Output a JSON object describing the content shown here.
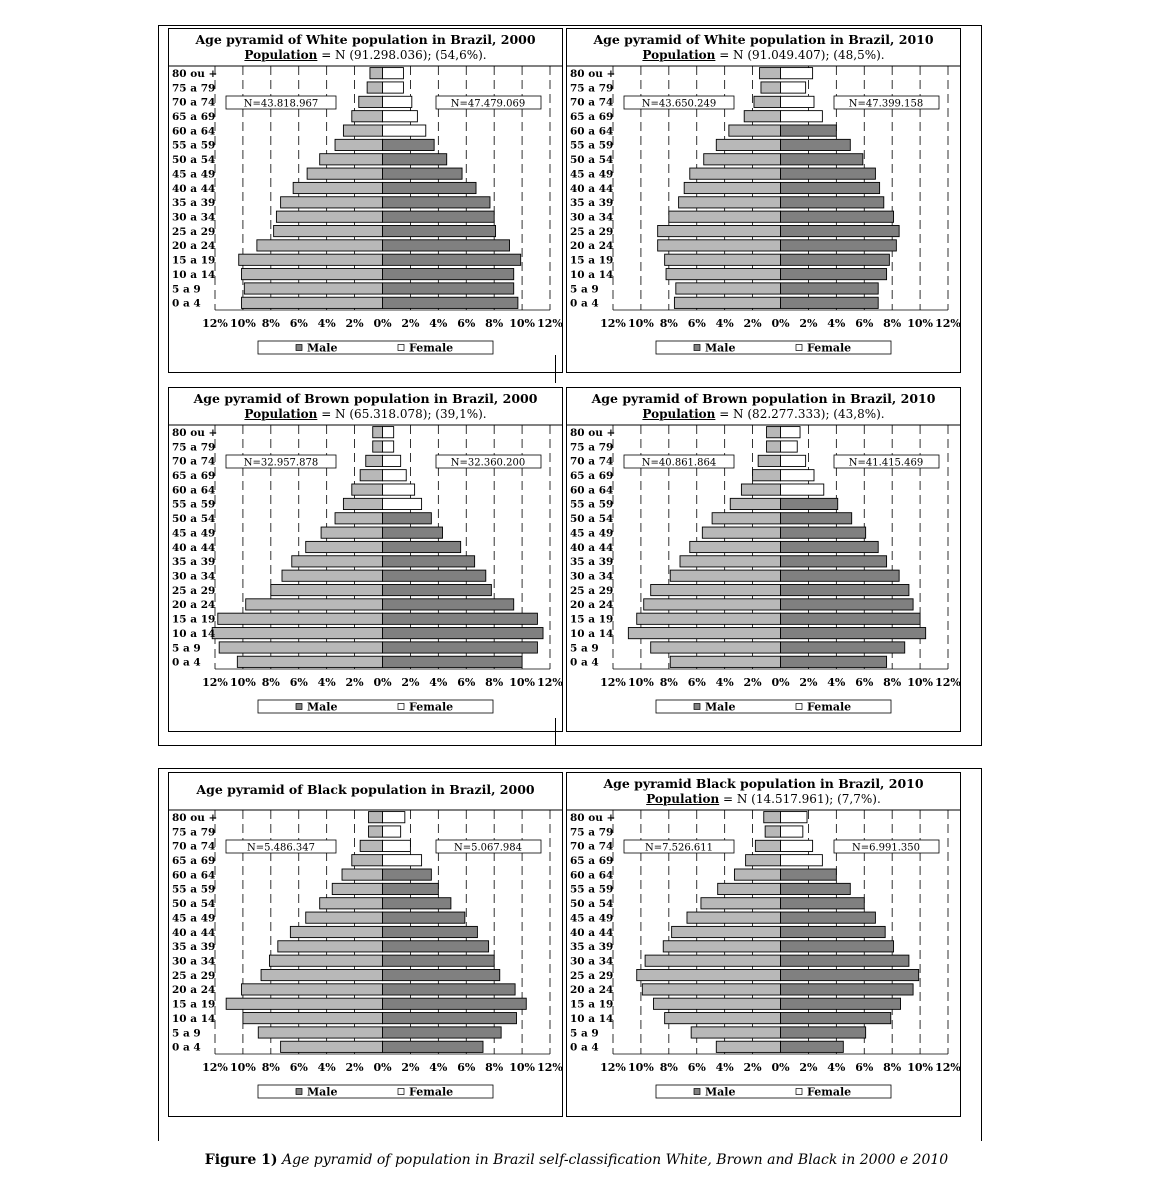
{
  "age_labels": [
    "0 a 4",
    "5 a 9",
    "10 a 14",
    "15 a 19",
    "20 a 24",
    "25 a 29",
    "30 a 34",
    "35 a 39",
    "40 a 44",
    "45 a 49",
    "50 a 54",
    "55 a 59",
    "60 a 64",
    "65 a 69",
    "70 a 74",
    "75 a 79",
    "80 ou +"
  ],
  "x_ticks": [
    "12%",
    "10%",
    "8%",
    "6%",
    "4%",
    "2%",
    "0%",
    "2%",
    "4%",
    "6%",
    "8%",
    "10%",
    "12%"
  ],
  "legend": {
    "male": "Male",
    "female": "Female"
  },
  "caption": {
    "prefix": "Figure 1)",
    "text": " Age pyramid of population in Brazil self-classification White, Brown and Black in 2000 e 2010"
  },
  "colors": {
    "male": "#b8b8b8",
    "female": "#808080",
    "female_light": "#ffffff",
    "border": "#000000"
  },
  "panels": [
    {
      "title": "Age pyramid of White population in Brazil, 2000",
      "sub_label": "Population",
      "sub_rest": " = N (91.298.036); (54,6%).",
      "n_male": "N=43.818.967",
      "n_female": "N=47.479.069"
    },
    {
      "title": "Age pyramid of White population in Brazil, 2010",
      "sub_label": "Population",
      "sub_rest": " = N (91.049.407); (48,5%).",
      "n_male": "N=43.650.249",
      "n_female": "N=47.399.158"
    },
    {
      "title": "Age pyramid of Brown population in Brazil, 2000",
      "sub_label": "Population",
      "sub_rest": " = N (65.318.078); (39,1%).",
      "n_male": "N=32.957.878",
      "n_female": "N=32.360.200"
    },
    {
      "title": "Age pyramid of  Brown population in Brazil, 2010",
      "sub_label": "Population",
      "sub_rest": " = N (82.277.333); (43,8%).",
      "n_male": "N=40.861.864",
      "n_female": "N=41.415.469"
    },
    {
      "title": "Age pyramid of Black population in Brazil, 2000",
      "sub_label": "",
      "sub_rest": "",
      "n_male": "N=5.486.347",
      "n_female": "N=5.067.984"
    },
    {
      "title": "Age pyramid Black population in Brazil, 2010",
      "sub_label": "Population",
      "sub_rest": " = N (14.517.961); (7,7%).",
      "n_male": "N=7.526.611",
      "n_female": "N=6.991.350"
    }
  ],
  "chart_data": [
    {
      "type": "bar",
      "title": "Age pyramid of White population in Brazil, 2000",
      "categories": [
        "0 a 4",
        "5 a 9",
        "10 a 14",
        "15 a 19",
        "20 a 24",
        "25 a 29",
        "30 a 34",
        "35 a 39",
        "40 a 44",
        "45 a 49",
        "50 a 54",
        "55 a 59",
        "60 a 64",
        "65 a 69",
        "70 a 74",
        "75 a 79",
        "80 ou +"
      ],
      "xlim": [
        -12,
        12
      ],
      "legend": "bottom",
      "series": [
        {
          "name": "Male",
          "values": [
            10.1,
            9.9,
            10.1,
            10.3,
            9.0,
            7.8,
            7.6,
            7.3,
            6.4,
            5.4,
            4.5,
            3.4,
            2.8,
            2.2,
            1.7,
            1.1,
            0.9
          ]
        },
        {
          "name": "Female",
          "values": [
            9.7,
            9.4,
            9.4,
            9.9,
            9.1,
            8.1,
            8.0,
            7.7,
            6.7,
            5.7,
            4.6,
            3.7,
            3.1,
            2.5,
            2.1,
            1.5,
            1.5
          ]
        }
      ]
    },
    {
      "type": "bar",
      "title": "Age pyramid of White population in Brazil, 2010",
      "categories": [
        "0 a 4",
        "5 a 9",
        "10 a 14",
        "15 a 19",
        "20 a 24",
        "25 a 29",
        "30 a 34",
        "35 a 39",
        "40 a 44",
        "45 a 49",
        "50 a 54",
        "55 a 59",
        "60 a 64",
        "65 a 69",
        "70 a 74",
        "75 a 79",
        "80 ou +"
      ],
      "xlim": [
        -12,
        12
      ],
      "legend": "bottom",
      "series": [
        {
          "name": "Male",
          "values": [
            7.6,
            7.5,
            8.2,
            8.3,
            8.8,
            8.8,
            8.0,
            7.3,
            6.9,
            6.5,
            5.5,
            4.6,
            3.7,
            2.6,
            1.9,
            1.4,
            1.5
          ]
        },
        {
          "name": "Female",
          "values": [
            7.0,
            7.0,
            7.6,
            7.8,
            8.3,
            8.5,
            8.1,
            7.4,
            7.1,
            6.8,
            5.9,
            5.0,
            4.0,
            3.0,
            2.4,
            1.8,
            2.3
          ]
        }
      ]
    },
    {
      "type": "bar",
      "title": "Age pyramid of Brown population in Brazil, 2000",
      "categories": [
        "0 a 4",
        "5 a 9",
        "10 a 14",
        "15 a 19",
        "20 a 24",
        "25 a 29",
        "30 a 34",
        "35 a 39",
        "40 a 44",
        "45 a 49",
        "50 a 54",
        "55 a 59",
        "60 a 64",
        "65 a 69",
        "70 a 74",
        "75 a 79",
        "80 ou +"
      ],
      "xlim": [
        -12,
        12
      ],
      "legend": "bottom",
      "series": [
        {
          "name": "Male",
          "values": [
            10.4,
            11.7,
            12.2,
            11.8,
            9.8,
            8.0,
            7.2,
            6.5,
            5.5,
            4.4,
            3.4,
            2.8,
            2.2,
            1.6,
            1.2,
            0.7,
            0.7
          ]
        },
        {
          "name": "Female",
          "values": [
            10.0,
            11.1,
            11.5,
            11.1,
            9.4,
            7.8,
            7.4,
            6.6,
            5.6,
            4.3,
            3.5,
            2.8,
            2.3,
            1.7,
            1.3,
            0.8,
            0.8
          ]
        }
      ]
    },
    {
      "type": "bar",
      "title": "Age pyramid of  Brown population in Brazil, 2010",
      "categories": [
        "0 a 4",
        "5 a 9",
        "10 a 14",
        "15 a 19",
        "20 a 24",
        "25 a 29",
        "30 a 34",
        "35 a 39",
        "40 a 44",
        "45 a 49",
        "50 a 54",
        "55 a 59",
        "60 a 64",
        "65 a 69",
        "70 a 74",
        "75 a 79",
        "80 ou +"
      ],
      "xlim": [
        -12,
        12
      ],
      "legend": "bottom",
      "series": [
        {
          "name": "Male",
          "values": [
            7.9,
            9.3,
            10.9,
            10.3,
            9.8,
            9.3,
            7.9,
            7.2,
            6.5,
            5.6,
            4.9,
            3.6,
            2.8,
            2.0,
            1.6,
            1.0,
            1.0
          ]
        },
        {
          "name": "Female",
          "values": [
            7.6,
            8.9,
            10.4,
            10.0,
            9.5,
            9.2,
            8.5,
            7.6,
            7.0,
            6.1,
            5.1,
            4.1,
            3.1,
            2.4,
            1.8,
            1.2,
            1.4
          ]
        }
      ]
    },
    {
      "type": "bar",
      "title": "Age pyramid of Black population in Brazil, 2000",
      "categories": [
        "0 a 4",
        "5 a 9",
        "10 a 14",
        "15 a 19",
        "20 a 24",
        "25 a 29",
        "30 a 34",
        "35 a 39",
        "40 a 44",
        "45 a 49",
        "50 a 54",
        "55 a 59",
        "60 a 64",
        "65 a 69",
        "70 a 74",
        "75 a 79",
        "80 ou +"
      ],
      "xlim": [
        -12,
        12
      ],
      "legend": "bottom",
      "series": [
        {
          "name": "Male",
          "values": [
            7.3,
            8.9,
            10.0,
            11.2,
            10.1,
            8.7,
            8.1,
            7.5,
            6.6,
            5.5,
            4.5,
            3.6,
            2.9,
            2.2,
            1.6,
            1.0,
            1.0
          ]
        },
        {
          "name": "Female",
          "values": [
            7.2,
            8.5,
            9.6,
            10.3,
            9.5,
            8.4,
            8.0,
            7.6,
            6.8,
            5.9,
            4.9,
            4.0,
            3.5,
            2.8,
            2.0,
            1.3,
            1.6
          ]
        }
      ]
    },
    {
      "type": "bar",
      "title": "Age pyramid Black population in Brazil, 2010",
      "categories": [
        "0 a 4",
        "5 a 9",
        "10 a 14",
        "15 a 19",
        "20 a 24",
        "25 a 29",
        "30 a 34",
        "35 a 39",
        "40 a 44",
        "45 a 49",
        "50 a 54",
        "55 a 59",
        "60 a 64",
        "65 a 69",
        "70 a 74",
        "75 a 79",
        "80 ou +"
      ],
      "xlim": [
        -12,
        12
      ],
      "legend": "bottom",
      "series": [
        {
          "name": "Male",
          "values": [
            4.6,
            6.4,
            8.3,
            9.1,
            9.9,
            10.3,
            9.7,
            8.4,
            7.8,
            6.7,
            5.7,
            4.5,
            3.3,
            2.5,
            1.8,
            1.1,
            1.2
          ]
        },
        {
          "name": "Female",
          "values": [
            4.5,
            6.1,
            7.9,
            8.6,
            9.5,
            9.9,
            9.2,
            8.1,
            7.5,
            6.8,
            6.0,
            5.0,
            4.0,
            3.0,
            2.3,
            1.6,
            1.9
          ]
        }
      ]
    }
  ]
}
